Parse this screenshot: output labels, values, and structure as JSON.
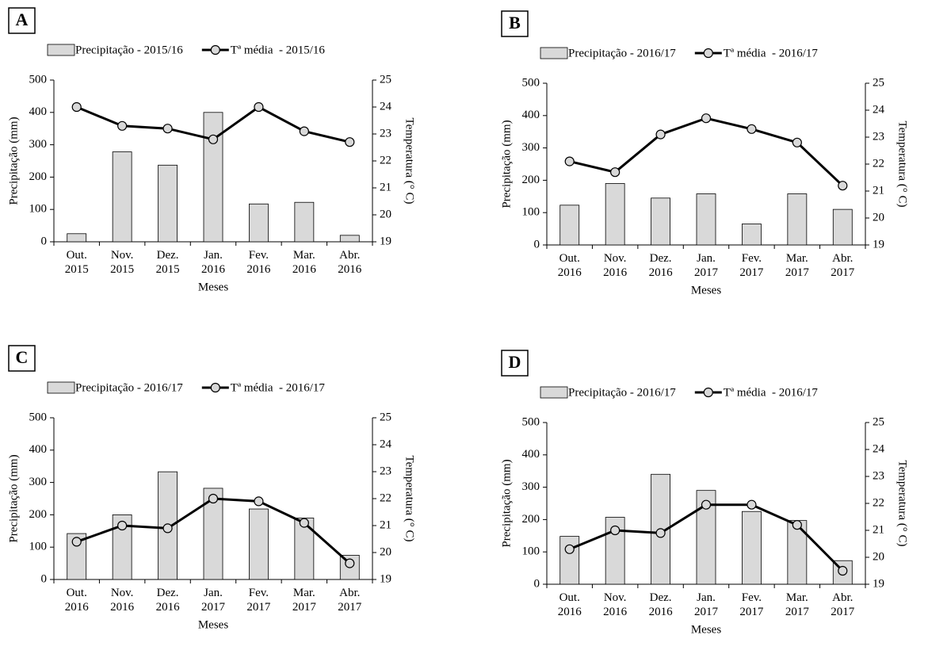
{
  "chart_data": [
    {
      "type": "combo",
      "panel_label": "A",
      "xlabel": "Meses",
      "ylabel": "Precipitação (mm)",
      "y2label": "Temperatura (° C)",
      "categories": [
        "Out. 2015",
        "Nov. 2015",
        "Dez. 2015",
        "Jan. 2016",
        "Fev. 2016",
        "Mar. 2016",
        "Abr. 2016"
      ],
      "series": [
        {
          "name": "Precipitação - 2015/16",
          "type": "bar",
          "color": "#d9d9d9",
          "values": [
            25,
            278,
            237,
            400,
            117,
            122,
            20
          ]
        },
        {
          "name": "Tª média  - 2015/16",
          "type": "line",
          "color": "#000000",
          "axis": "y2",
          "values": [
            24.0,
            23.3,
            23.2,
            22.8,
            24.0,
            23.1,
            22.7
          ]
        }
      ],
      "ylim": [
        0,
        500
      ],
      "yticks": [
        0,
        100,
        200,
        300,
        400,
        500
      ],
      "y2lim": [
        19,
        25
      ],
      "y2ticks": [
        19,
        20,
        21,
        22,
        23,
        24,
        25
      ]
    },
    {
      "type": "combo",
      "panel_label": "B",
      "xlabel": "Meses",
      "ylabel": "Precipitação (mm)",
      "y2label": "Temperatura (° C)",
      "categories": [
        "Out. 2016",
        "Nov. 2016",
        "Dez. 2016",
        "Jan. 2017",
        "Fev. 2017",
        "Mar. 2017",
        "Abr. 2017"
      ],
      "series": [
        {
          "name": "Precipitação - 2016/17",
          "type": "bar",
          "color": "#d9d9d9",
          "values": [
            123,
            190,
            145,
            158,
            65,
            158,
            110
          ]
        },
        {
          "name": "Tª média  - 2016/17",
          "type": "line",
          "color": "#000000",
          "axis": "y2",
          "values": [
            22.1,
            21.7,
            23.1,
            23.7,
            23.3,
            22.8,
            21.2
          ]
        }
      ],
      "ylim": [
        0,
        500
      ],
      "yticks": [
        0,
        100,
        200,
        300,
        400,
        500
      ],
      "y2lim": [
        19,
        25
      ],
      "y2ticks": [
        19,
        20,
        21,
        22,
        23,
        24,
        25
      ]
    },
    {
      "type": "combo",
      "panel_label": "C",
      "xlabel": "Meses",
      "ylabel": "Precipitação (mm)",
      "y2label": "Temperatura (° C)",
      "categories": [
        "Out. 2016",
        "Nov. 2016",
        "Dez. 2016",
        "Jan. 2017",
        "Fev. 2017",
        "Mar. 2017",
        "Abr. 2017"
      ],
      "series": [
        {
          "name": "Precipitação - 2016/17",
          "type": "bar",
          "color": "#d9d9d9",
          "values": [
            142,
            200,
            333,
            282,
            218,
            190,
            75
          ]
        },
        {
          "name": "Tª média  - 2016/17",
          "type": "line",
          "color": "#000000",
          "axis": "y2",
          "values": [
            20.4,
            21.0,
            20.9,
            22.0,
            21.9,
            21.1,
            19.6
          ]
        }
      ],
      "ylim": [
        0,
        500
      ],
      "yticks": [
        0,
        100,
        200,
        300,
        400,
        500
      ],
      "y2lim": [
        19,
        25
      ],
      "y2ticks": [
        19,
        20,
        21,
        22,
        23,
        24,
        25
      ]
    },
    {
      "type": "combo",
      "panel_label": "D",
      "xlabel": "Meses",
      "ylabel": "Precipitação (mm)",
      "y2label": "Temperatura (° C)",
      "categories": [
        "Out. 2016",
        "Nov. 2016",
        "Dez. 2016",
        "Jan. 2017",
        "Fev. 2017",
        "Mar. 2017",
        "Abr. 2017"
      ],
      "series": [
        {
          "name": "Precipitação - 2016/17",
          "type": "bar",
          "color": "#d9d9d9",
          "values": [
            148,
            207,
            340,
            290,
            225,
            197,
            73
          ]
        },
        {
          "name": "Tª média  - 2016/17",
          "type": "line",
          "color": "#000000",
          "axis": "y2",
          "values": [
            20.3,
            21.0,
            20.9,
            21.95,
            21.95,
            21.2,
            19.5
          ]
        }
      ],
      "ylim": [
        0,
        500
      ],
      "yticks": [
        0,
        100,
        200,
        300,
        400,
        500
      ],
      "y2lim": [
        19,
        25
      ],
      "y2ticks": [
        19,
        20,
        21,
        22,
        23,
        24,
        25
      ]
    }
  ]
}
